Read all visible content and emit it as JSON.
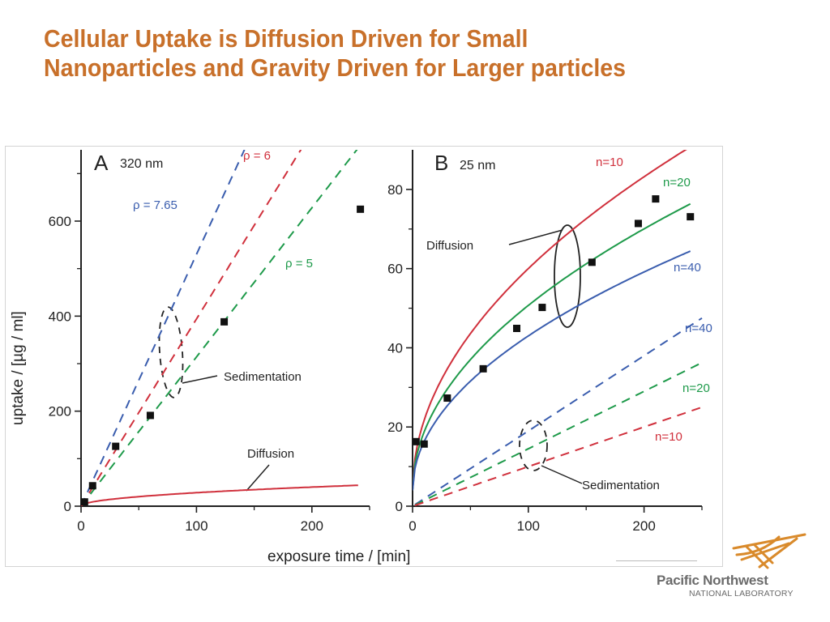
{
  "slide": {
    "title": "Cellular Uptake is Diffusion Driven for Small Nanoparticles and Gravity Driven for Larger particles",
    "logo": {
      "line1": "Pacific Northwest",
      "line2": "NATIONAL LABORATORY",
      "accent": "#d98a2b"
    }
  },
  "axis_labels": {
    "ylabel": "uptake / [µg / ml]",
    "xlabel": "exposure time / [min]"
  },
  "chart_data": [
    {
      "type": "scatter",
      "panel": "A",
      "title": "320 nm",
      "xlabel": "exposure time / [min]",
      "ylabel": "uptake / [µg / ml]",
      "xlim": [
        0,
        250
      ],
      "ylim": [
        0,
        750
      ],
      "xticks": [
        0,
        100,
        200
      ],
      "xminor": [
        50,
        150,
        250
      ],
      "yticks": [
        0,
        200,
        400,
        600
      ],
      "yminor": [
        100,
        300,
        500,
        700
      ],
      "points": {
        "x": [
          3,
          10,
          30,
          60,
          124,
          242
        ],
        "y": [
          9,
          43,
          126,
          191,
          388,
          625
        ]
      },
      "series": [
        {
          "name": "ρ = 7.65",
          "kind": "linear",
          "slope": 5.3,
          "intercept": 0,
          "color": "#3a5dae",
          "dashed": true,
          "label_group": "Sedimentation"
        },
        {
          "name": "ρ = 6",
          "kind": "linear",
          "slope": 3.94,
          "intercept": 0,
          "color": "#d0303c",
          "dashed": true,
          "label_group": "Sedimentation"
        },
        {
          "name": "ρ = 5",
          "kind": "linear",
          "slope": 3.14,
          "intercept": 0,
          "color": "#1e9a4a",
          "dashed": true,
          "label_group": "Sedimentation"
        },
        {
          "name": "Diffusion",
          "kind": "sqrt",
          "coef": 2.84,
          "intercept": 0,
          "color": "#d0303c",
          "dashed": false,
          "xmax": 240
        }
      ],
      "annotations": [
        "Sedimentation",
        "Diffusion"
      ]
    },
    {
      "type": "scatter",
      "panel": "B",
      "title": "25 nm",
      "xlabel": "exposure time / [min]",
      "ylabel": "uptake / [µg / ml]",
      "xlim": [
        0,
        250
      ],
      "ylim": [
        0,
        90
      ],
      "xticks": [
        0,
        100,
        200
      ],
      "xminor": [
        50,
        150,
        250
      ],
      "yticks": [
        0,
        20,
        40,
        60,
        80
      ],
      "yminor": [
        10,
        30,
        50,
        70
      ],
      "points": {
        "x": [
          3,
          10,
          30,
          61,
          90,
          112,
          155,
          195,
          210,
          240
        ],
        "y": [
          16.3,
          15.7,
          27.3,
          34.7,
          44.9,
          50.2,
          61.6,
          71.4,
          77.6,
          73.1
        ]
      },
      "series": [
        {
          "name": "n=10",
          "kind": "sqrt",
          "coef": 5.6,
          "intercept": 4,
          "color": "#d0303c",
          "dashed": false,
          "label_group": "Diffusion"
        },
        {
          "name": "n=20",
          "kind": "sqrt",
          "coef": 4.67,
          "intercept": 4,
          "color": "#1e9a4a",
          "dashed": false,
          "label_group": "Diffusion"
        },
        {
          "name": "n=40",
          "kind": "sqrt",
          "coef": 3.9,
          "intercept": 4,
          "color": "#3a5dae",
          "dashed": false,
          "label_group": "Diffusion"
        },
        {
          "name": "n=40",
          "kind": "linear",
          "slope": 0.19,
          "intercept": 0,
          "color": "#3a5dae",
          "dashed": true,
          "label_group": "Sedimentation"
        },
        {
          "name": "n=20",
          "kind": "linear",
          "slope": 0.145,
          "intercept": 0,
          "color": "#1e9a4a",
          "dashed": true,
          "label_group": "Sedimentation"
        },
        {
          "name": "n=10",
          "kind": "linear",
          "slope": 0.1,
          "intercept": 0,
          "color": "#d0303c",
          "dashed": true,
          "label_group": "Sedimentation"
        }
      ],
      "annotations": [
        "Diffusion",
        "Sedimentation"
      ]
    }
  ]
}
